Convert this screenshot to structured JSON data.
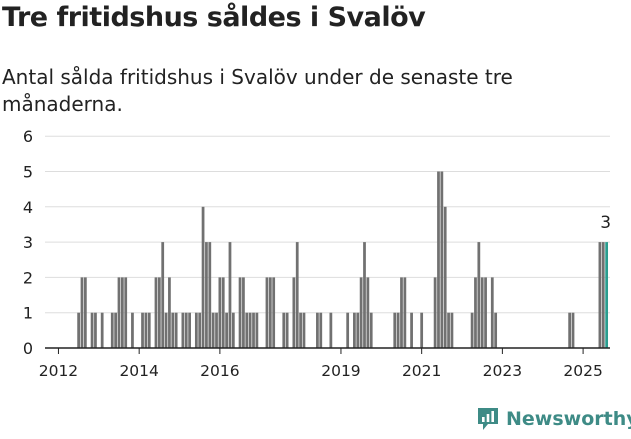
{
  "title": "Tre fritidshus såldes i Svalöv",
  "subtitle": "Antal sålda fritidshus i Svalöv under de senaste tre månaderna.",
  "brand": "Newsworthy",
  "colors": {
    "bar": "#717171",
    "highlight": "#2a9d8f",
    "grid": "#dddddd",
    "axis": "#222222",
    "brand": "#3e8b86"
  },
  "chart_data": {
    "type": "bar",
    "title": "Tre fritidshus såldes i Svalöv",
    "xlabel": "",
    "ylabel": "",
    "ylim": [
      0,
      6
    ],
    "yticks": [
      0,
      1,
      2,
      3,
      4,
      5,
      6
    ],
    "xticks": [
      "2012",
      "2014",
      "2016",
      "2019",
      "2021",
      "2023",
      "2025"
    ],
    "xtick_dates": [
      "2012-01",
      "2014-01",
      "2016-01",
      "2019-01",
      "2021-01",
      "2023-01",
      "2025-01"
    ],
    "x_range": [
      "2011-09",
      "2025-09"
    ],
    "grid": true,
    "highlight_label": "3",
    "series": [
      {
        "data": [
          [
            "2012-07",
            1
          ],
          [
            "2012-08",
            2
          ],
          [
            "2012-09",
            2
          ],
          [
            "2012-11",
            1
          ],
          [
            "2012-12",
            1
          ],
          [
            "2013-02",
            1
          ],
          [
            "2013-05",
            1
          ],
          [
            "2013-06",
            1
          ],
          [
            "2013-07",
            2
          ],
          [
            "2013-08",
            2
          ],
          [
            "2013-09",
            2
          ],
          [
            "2013-11",
            1
          ],
          [
            "2014-02",
            1
          ],
          [
            "2014-03",
            1
          ],
          [
            "2014-04",
            1
          ],
          [
            "2014-06",
            2
          ],
          [
            "2014-07",
            2
          ],
          [
            "2014-08",
            3
          ],
          [
            "2014-09",
            1
          ],
          [
            "2014-10",
            2
          ],
          [
            "2014-11",
            1
          ],
          [
            "2014-12",
            1
          ],
          [
            "2015-02",
            1
          ],
          [
            "2015-03",
            1
          ],
          [
            "2015-04",
            1
          ],
          [
            "2015-06",
            1
          ],
          [
            "2015-07",
            1
          ],
          [
            "2015-08",
            4
          ],
          [
            "2015-09",
            3
          ],
          [
            "2015-10",
            3
          ],
          [
            "2015-11",
            1
          ],
          [
            "2015-12",
            1
          ],
          [
            "2016-01",
            2
          ],
          [
            "2016-02",
            2
          ],
          [
            "2016-03",
            1
          ],
          [
            "2016-04",
            3
          ],
          [
            "2016-05",
            1
          ],
          [
            "2016-07",
            2
          ],
          [
            "2016-08",
            2
          ],
          [
            "2016-09",
            1
          ],
          [
            "2016-10",
            1
          ],
          [
            "2016-11",
            1
          ],
          [
            "2016-12",
            1
          ],
          [
            "2017-03",
            2
          ],
          [
            "2017-04",
            2
          ],
          [
            "2017-05",
            2
          ],
          [
            "2017-08",
            1
          ],
          [
            "2017-09",
            1
          ],
          [
            "2017-11",
            2
          ],
          [
            "2017-12",
            3
          ],
          [
            "2018-01",
            1
          ],
          [
            "2018-02",
            1
          ],
          [
            "2018-06",
            1
          ],
          [
            "2018-07",
            1
          ],
          [
            "2018-10",
            1
          ],
          [
            "2019-03",
            1
          ],
          [
            "2019-05",
            1
          ],
          [
            "2019-06",
            1
          ],
          [
            "2019-07",
            2
          ],
          [
            "2019-08",
            3
          ],
          [
            "2019-09",
            2
          ],
          [
            "2019-10",
            1
          ],
          [
            "2020-05",
            1
          ],
          [
            "2020-06",
            1
          ],
          [
            "2020-07",
            2
          ],
          [
            "2020-08",
            2
          ],
          [
            "2020-10",
            1
          ],
          [
            "2021-01",
            1
          ],
          [
            "2021-05",
            2
          ],
          [
            "2021-06",
            5
          ],
          [
            "2021-07",
            5
          ],
          [
            "2021-08",
            4
          ],
          [
            "2021-09",
            1
          ],
          [
            "2021-10",
            1
          ],
          [
            "2022-04",
            1
          ],
          [
            "2022-05",
            2
          ],
          [
            "2022-06",
            3
          ],
          [
            "2022-07",
            2
          ],
          [
            "2022-08",
            2
          ],
          [
            "2022-10",
            2
          ],
          [
            "2022-11",
            1
          ],
          [
            "2024-09",
            1
          ],
          [
            "2024-10",
            1
          ],
          [
            "2025-06",
            3
          ],
          [
            "2025-07",
            3
          ]
        ],
        "highlight": [
          "2025-08",
          3
        ]
      }
    ]
  }
}
